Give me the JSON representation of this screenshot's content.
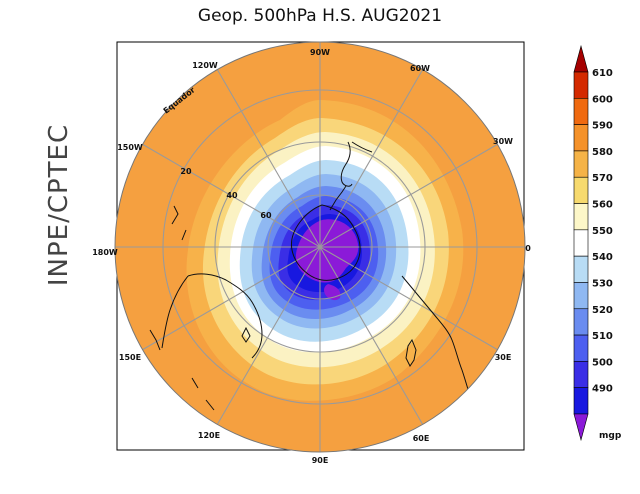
{
  "title": "Geop. 500hPa H.S. AUG2021",
  "side_label": "INPE/CPTEC",
  "equator_label": "Equador",
  "longitude_labels": {
    "n90w": "90W",
    "n60w": "60W",
    "n30w": "30W",
    "zero": "0",
    "n30e": "30E",
    "n60e": "60E",
    "n90e": "90E",
    "n120e": "120E",
    "n150e": "150E",
    "n180w": "180W",
    "n150w": "150W",
    "n120w": "120W"
  },
  "latitude_labels": [
    "20",
    "40",
    "60"
  ],
  "colorbar": {
    "levels": [
      "610",
      "600",
      "590",
      "580",
      "570",
      "560",
      "550",
      "540",
      "530",
      "520",
      "510",
      "500",
      "490"
    ],
    "unit": "mgp",
    "colors": [
      "#a50000",
      "#d42a00",
      "#f06a10",
      "#f5922a",
      "#f5b347",
      "#f7da6e",
      "#fdf7c8",
      "#ffffff",
      "#b8dcf5",
      "#8fb8f2",
      "#6a8cf0",
      "#4d5ff0",
      "#3a2ee6",
      "#1818e0",
      "#8b1ad8"
    ]
  }
}
